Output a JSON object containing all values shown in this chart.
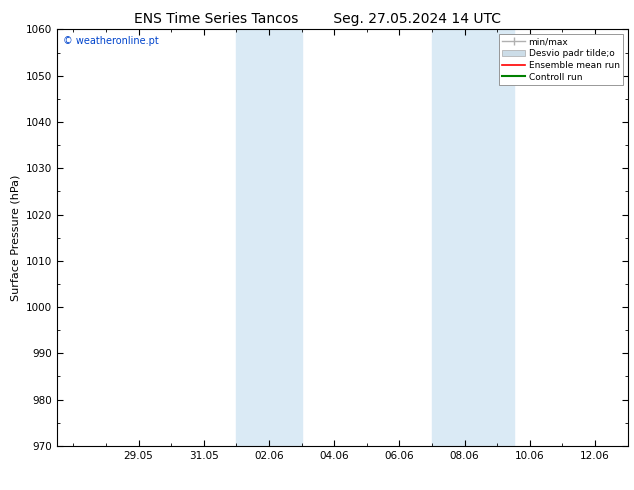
{
  "title_left": "ENS Time Series Tancos",
  "title_right": "Seg. 27.05.2024 14 UTC",
  "ylabel": "Surface Pressure (hPa)",
  "ylim": [
    970,
    1060
  ],
  "yticks": [
    970,
    980,
    990,
    1000,
    1010,
    1020,
    1030,
    1040,
    1050,
    1060
  ],
  "xtick_labels": [
    "29.05",
    "31.05",
    "02.06",
    "04.06",
    "06.06",
    "08.06",
    "10.06",
    "12.06"
  ],
  "xtick_positions": [
    2,
    4,
    6,
    8,
    10,
    12,
    14,
    16
  ],
  "xlim": [
    -0.5,
    17.0
  ],
  "shaded_bands": [
    {
      "xmin": 5.0,
      "xmax": 7.0,
      "color": "#daeaf5"
    },
    {
      "xmin": 11.0,
      "xmax": 13.5,
      "color": "#daeaf5"
    }
  ],
  "legend_labels": [
    "min/max",
    "Desvio padr tilde;o",
    "Ensemble mean run",
    "Controll run"
  ],
  "legend_colors": [
    "#b0b0b0",
    "#ccdde8",
    "red",
    "green"
  ],
  "copyright_text": "© weatheronline.pt",
  "bg_color": "#ffffff",
  "title_fontsize": 10,
  "tick_fontsize": 7.5,
  "ylabel_fontsize": 8
}
